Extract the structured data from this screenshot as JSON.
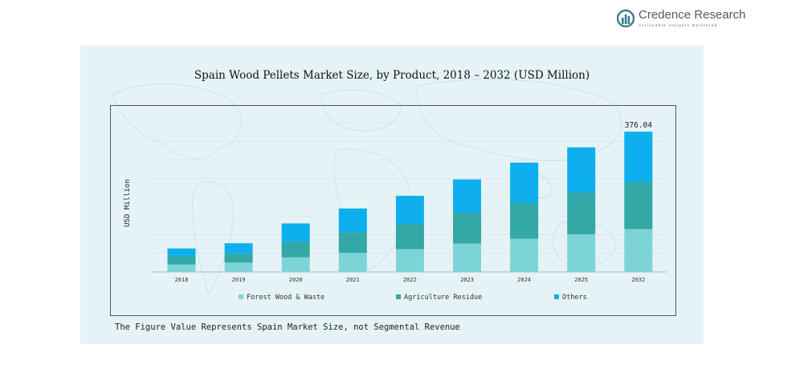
{
  "brand": {
    "name": "Credence Research",
    "tagline": "Actionable Insights Delivered"
  },
  "footnote": "The Figure Value Represents Spain Market Size, not Segmental Revenue",
  "colors": {
    "forest": "#7dd4d6",
    "agri": "#33a8a6",
    "others": "#0db0ec",
    "panel": "#e6f3f6"
  },
  "chart_data": {
    "type": "bar",
    "stacked": true,
    "title": "Spain Wood Pellets Market Size, by Product, 2018 – 2032 (USD Million)",
    "xlabel": "",
    "ylabel": "USD Million",
    "categories": [
      "2018",
      "2019",
      "2020",
      "2021",
      "2022",
      "2023",
      "2024",
      "2025",
      "2032"
    ],
    "series": [
      {
        "name": "Forest Wood & Waste",
        "color": "#7dd4d6",
        "values": [
          20,
          25,
          39,
          51,
          61,
          76,
          89,
          101,
          115
        ]
      },
      {
        "name": "Agriculture Residue",
        "color": "#33a8a6",
        "values": [
          21,
          24,
          42,
          55,
          67,
          83,
          96,
          112,
          126
        ]
      },
      {
        "name": "Others",
        "color": "#0db0ec",
        "values": [
          22,
          28,
          49,
          64,
          76,
          89,
          108,
          121,
          135.04
        ]
      }
    ],
    "annotations": [
      {
        "category": "2032",
        "text": "376.04"
      }
    ],
    "ylim": [
      0,
      400
    ],
    "grid": true,
    "legend": "bottom"
  }
}
